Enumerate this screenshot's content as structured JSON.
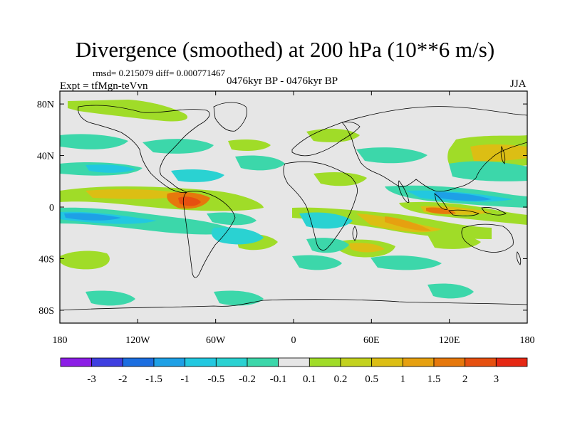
{
  "title": "Divergence (smoothed) at 200 hPa (10**6 m/s)",
  "stats_line": "rmsd= 0.215079 diff= 0.000771467",
  "experiment": "Expt = tfMgn-teVvn",
  "period": "0476kyr BP - 0476kyr BP",
  "season": "JJA",
  "map": {
    "projection": "cylindrical equidistant",
    "lon_range": [
      -180,
      180
    ],
    "lat_range": [
      -90,
      90
    ],
    "background_color": "#e6e6e6",
    "lat_ticks": [
      {
        "value": 80,
        "label": "80N"
      },
      {
        "value": 40,
        "label": "40N"
      },
      {
        "value": 0,
        "label": "0"
      },
      {
        "value": -40,
        "label": "40S"
      },
      {
        "value": -80,
        "label": "80S"
      }
    ],
    "lon_ticks": [
      {
        "value": -180,
        "label": "180"
      },
      {
        "value": -120,
        "label": "120W"
      },
      {
        "value": -60,
        "label": "60W"
      },
      {
        "value": 0,
        "label": "0"
      },
      {
        "value": 60,
        "label": "60E"
      },
      {
        "value": 120,
        "label": "120E"
      },
      {
        "value": 180,
        "label": "180"
      }
    ]
  },
  "colorbar": {
    "colors": [
      "#8c1ee6",
      "#3f3fe0",
      "#1c6ee0",
      "#1ea0e6",
      "#22c8e0",
      "#2ad2d2",
      "#3cd7aa",
      "#e6e6e6",
      "#a0dc28",
      "#c3d21e",
      "#dcbe14",
      "#e6a010",
      "#e6780c",
      "#e65010",
      "#e62814"
    ],
    "labels": [
      "-3",
      "-2",
      "-1.5",
      "-1",
      "-0.5",
      "-0.2",
      "-0.1",
      "0.1",
      "0.2",
      "0.5",
      "1",
      "1.5",
      "2",
      "3"
    ]
  },
  "chart_data": {
    "type": "heatmap",
    "title": "Divergence (smoothed) at 200 hPa (10**6 m/s)",
    "xlabel": "",
    "ylabel": "",
    "x_range": [
      -180,
      180
    ],
    "y_range": [
      -90,
      90
    ],
    "levels": [
      -3,
      -2,
      -1.5,
      -1,
      -0.5,
      -0.2,
      -0.1,
      0.1,
      0.2,
      0.5,
      1,
      1.5,
      2,
      3
    ],
    "approx_features": [
      {
        "lon": -75,
        "lat": 3,
        "value": 1.5
      },
      {
        "lon": 110,
        "lat": -5,
        "value": 1.2
      },
      {
        "lon": -150,
        "lat": -8,
        "value": -0.6
      },
      {
        "lon": 105,
        "lat": 12,
        "value": -0.8
      },
      {
        "lon": 60,
        "lat": -20,
        "value": 0.8
      },
      {
        "lon": -60,
        "lat": -15,
        "value": -0.5
      },
      {
        "lon": 30,
        "lat": 0,
        "value": -0.4
      },
      {
        "lon": 150,
        "lat": 38,
        "value": 0.5
      },
      {
        "lon": 15,
        "lat": -38,
        "value": -0.5
      }
    ]
  }
}
